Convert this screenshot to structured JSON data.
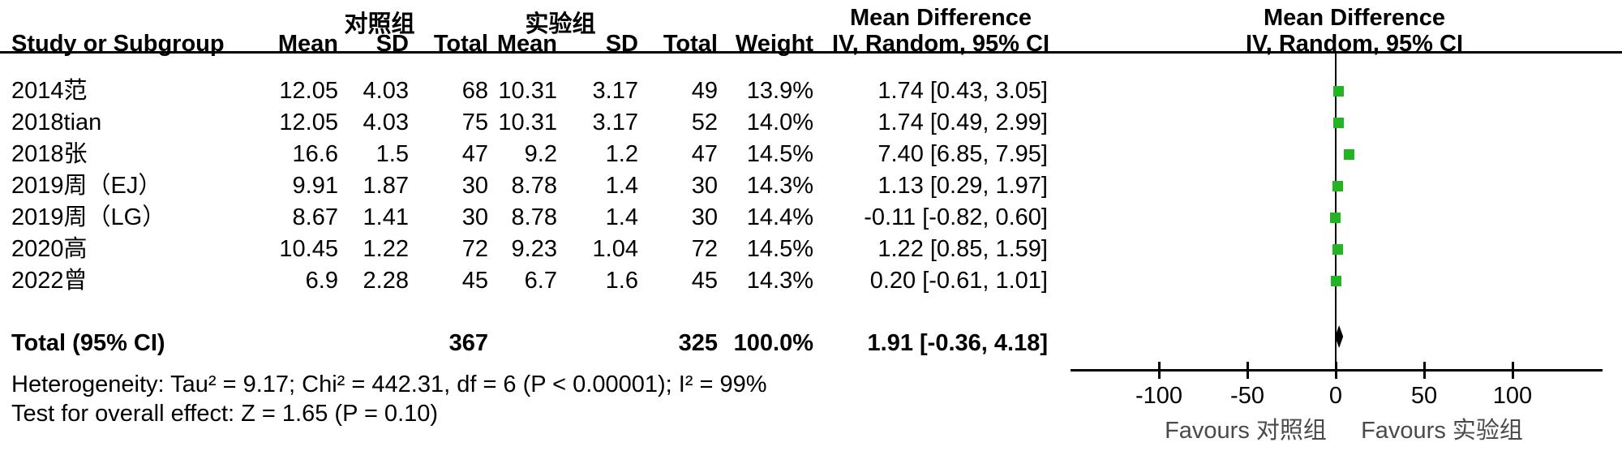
{
  "header": {
    "group1": "对照组",
    "group2": "实验组",
    "effect_title": "Mean Difference",
    "effect_method": "IV, Random, 95% CI",
    "col_study": "Study or Subgroup",
    "col_mean": "Mean",
    "col_sd": "SD",
    "col_total": "Total",
    "col_weight": "Weight"
  },
  "studies": [
    {
      "name": "2014范",
      "c_mean": "12.05",
      "c_sd": "4.03",
      "c_total": "68",
      "e_mean": "10.31",
      "e_sd": "3.17",
      "e_total": "49",
      "weight": "13.9%",
      "ci": "1.74 [0.43, 3.05]"
    },
    {
      "name": "2018tian",
      "c_mean": "12.05",
      "c_sd": "4.03",
      "c_total": "75",
      "e_mean": "10.31",
      "e_sd": "3.17",
      "e_total": "52",
      "weight": "14.0%",
      "ci": "1.74 [0.49, 2.99]"
    },
    {
      "name": "2018张",
      "c_mean": "16.6",
      "c_sd": "1.5",
      "c_total": "47",
      "e_mean": "9.2",
      "e_sd": "1.2",
      "e_total": "47",
      "weight": "14.5%",
      "ci": "7.40 [6.85, 7.95]"
    },
    {
      "name": "2019周（EJ）",
      "c_mean": "9.91",
      "c_sd": "1.87",
      "c_total": "30",
      "e_mean": "8.78",
      "e_sd": "1.4",
      "e_total": "30",
      "weight": "14.3%",
      "ci": "1.13 [0.29, 1.97]"
    },
    {
      "name": "2019周（LG）",
      "c_mean": "8.67",
      "c_sd": "1.41",
      "c_total": "30",
      "e_mean": "8.78",
      "e_sd": "1.4",
      "e_total": "30",
      "weight": "14.4%",
      "ci": "-0.11 [-0.82, 0.60]"
    },
    {
      "name": "2020高",
      "c_mean": "10.45",
      "c_sd": "1.22",
      "c_total": "72",
      "e_mean": "9.23",
      "e_sd": "1.04",
      "e_total": "72",
      "weight": "14.5%",
      "ci": "1.22 [0.85, 1.59]"
    },
    {
      "name": "2022曾",
      "c_mean": "6.9",
      "c_sd": "2.28",
      "c_total": "45",
      "e_mean": "6.7",
      "e_sd": "1.6",
      "e_total": "45",
      "weight": "14.3%",
      "ci": "0.20 [-0.61, 1.01]"
    }
  ],
  "total": {
    "label": "Total (95% CI)",
    "c_total": "367",
    "e_total": "325",
    "weight": "100.0%",
    "ci": "1.91 [-0.36, 4.18]"
  },
  "footer": {
    "heterogeneity": "Heterogeneity: Tau² = 9.17; Chi² = 442.31, df = 6 (P < 0.00001); I² = 99%",
    "overall_effect": "Test for overall effect: Z = 1.65 (P = 0.10)"
  },
  "chart_data": {
    "type": "scatter",
    "subtype": "forest-plot",
    "title": "Mean Difference",
    "method": "IV, Random, 95% CI",
    "xticks": [
      -100,
      -50,
      0,
      50,
      100
    ],
    "xlim": [
      -150,
      151
    ],
    "favours_left": "Favours 对照组",
    "favours_right": "Favours 实验组",
    "marker_color": "#22b422",
    "ci_color": "#000000",
    "points": [
      {
        "label": "2014范",
        "md": 1.74,
        "lo": 0.43,
        "hi": 3.05
      },
      {
        "label": "2018tian",
        "md": 1.74,
        "lo": 0.49,
        "hi": 2.99
      },
      {
        "label": "2018张",
        "md": 7.4,
        "lo": 6.85,
        "hi": 7.95
      },
      {
        "label": "2019周（EJ）",
        "md": 1.13,
        "lo": 0.29,
        "hi": 1.97
      },
      {
        "label": "2019周（LG）",
        "md": -0.11,
        "lo": -0.82,
        "hi": 0.6
      },
      {
        "label": "2020高",
        "md": 1.22,
        "lo": 0.85,
        "hi": 1.59
      },
      {
        "label": "2022曾",
        "md": 0.2,
        "lo": -0.61,
        "hi": 1.01
      }
    ],
    "diamond": {
      "md": 1.91,
      "lo": -0.36,
      "hi": 4.18
    }
  }
}
